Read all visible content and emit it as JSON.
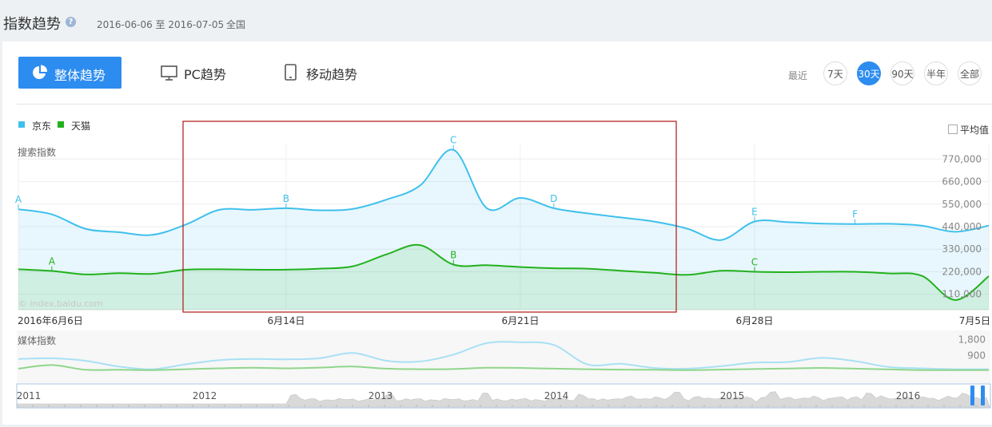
{
  "header": {
    "title": "指数趋势",
    "help_icon": "?",
    "date_range": "2016-06-06 至 2016-07-05",
    "region": "全国"
  },
  "tabs": [
    {
      "label": "整体趋势",
      "icon": "pie-chart-icon",
      "active": true
    },
    {
      "label": "PC趋势",
      "icon": "monitor-icon",
      "active": false
    },
    {
      "label": "移动趋势",
      "icon": "tablet-icon",
      "active": false
    }
  ],
  "range": {
    "label": "最近",
    "options": [
      "7天",
      "30天",
      "90天",
      "半年",
      "全部"
    ],
    "selected": "30天"
  },
  "avg_checkbox_label": "平均值",
  "colors": {
    "accent": "#2d8cf0",
    "jd": "#3fc0ec",
    "tmall": "#22b11d",
    "highlight_box": "#b01515"
  },
  "chart_data": [
    {
      "type": "area",
      "ylabel": "搜索指数",
      "watermark": "© index.baidu.com",
      "x_tick_labels": [
        "2016年6月6日",
        "6月14日",
        "6月21日",
        "6月28日",
        "7月5日"
      ],
      "y_tick_labels": [
        "110,000",
        "220,000",
        "330,000",
        "440,000",
        "550,000",
        "660,000",
        "770,000"
      ],
      "ylim": [
        35000,
        845000
      ],
      "legend": "top-left",
      "grid": true,
      "x": [
        "2016-06-06",
        "2016-06-07",
        "2016-06-08",
        "2016-06-09",
        "2016-06-10",
        "2016-06-11",
        "2016-06-12",
        "2016-06-13",
        "2016-06-14",
        "2016-06-15",
        "2016-06-16",
        "2016-06-17",
        "2016-06-18",
        "2016-06-19",
        "2016-06-20",
        "2016-06-21",
        "2016-06-22",
        "2016-06-23",
        "2016-06-24",
        "2016-06-25",
        "2016-06-26",
        "2016-06-27",
        "2016-06-28",
        "2016-06-29",
        "2016-06-30",
        "2016-07-01",
        "2016-07-02",
        "2016-07-03",
        "2016-07-04",
        "2016-07-05"
      ],
      "series": [
        {
          "name": "京东",
          "values": [
            525000,
            500000,
            430000,
            413000,
            400000,
            450000,
            522000,
            522000,
            530000,
            520000,
            527000,
            572000,
            640000,
            815000,
            530000,
            580000,
            530000,
            505000,
            485000,
            465000,
            430000,
            375000,
            465000,
            462000,
            455000,
            453000,
            454000,
            445000,
            415000,
            445000
          ]
        },
        {
          "name": "天猫",
          "values": [
            232000,
            224000,
            207000,
            213000,
            210000,
            230000,
            232000,
            230000,
            230000,
            235000,
            247000,
            305000,
            350000,
            255000,
            252000,
            243000,
            237000,
            235000,
            225000,
            215000,
            205000,
            225000,
            220000,
            218000,
            220000,
            220000,
            212000,
            200000,
            82000,
            198000
          ]
        }
      ],
      "annotations": [
        {
          "series": "京东",
          "x": "2016-06-06",
          "label": "A"
        },
        {
          "series": "京东",
          "x": "2016-06-14",
          "label": "B"
        },
        {
          "series": "京东",
          "x": "2016-06-19",
          "label": "C"
        },
        {
          "series": "京东",
          "x": "2016-06-22",
          "label": "D"
        },
        {
          "series": "京东",
          "x": "2016-06-28",
          "label": "E"
        },
        {
          "series": "京东",
          "x": "2016-07-01",
          "label": "F"
        },
        {
          "series": "天猫",
          "x": "2016-06-07",
          "label": "A"
        },
        {
          "series": "天猫",
          "x": "2016-06-19",
          "label": "B"
        },
        {
          "series": "天猫",
          "x": "2016-06-28",
          "label": "C"
        }
      ]
    },
    {
      "type": "line",
      "ylabel": "媒体指数",
      "y_tick_labels": [
        "900",
        "1,800"
      ],
      "ylim": [
        0,
        1950
      ],
      "x": [
        "2016-06-06",
        "2016-06-07",
        "2016-06-08",
        "2016-06-09",
        "2016-06-10",
        "2016-06-11",
        "2016-06-12",
        "2016-06-13",
        "2016-06-14",
        "2016-06-15",
        "2016-06-16",
        "2016-06-17",
        "2016-06-18",
        "2016-06-19",
        "2016-06-20",
        "2016-06-21",
        "2016-06-22",
        "2016-06-23",
        "2016-06-24",
        "2016-06-25",
        "2016-06-26",
        "2016-06-27",
        "2016-06-28",
        "2016-06-29",
        "2016-06-30",
        "2016-07-01",
        "2016-07-02",
        "2016-07-03",
        "2016-07-04",
        "2016-07-05"
      ],
      "series": [
        {
          "name": "京东",
          "values": [
            720,
            760,
            620,
            300,
            150,
            420,
            650,
            720,
            700,
            760,
            1050,
            620,
            580,
            960,
            1600,
            1650,
            1500,
            420,
            450,
            220,
            180,
            320,
            520,
            550,
            780,
            600,
            280,
            200,
            150,
            150
          ]
        },
        {
          "name": "天猫",
          "values": [
            180,
            380,
            120,
            120,
            100,
            150,
            200,
            230,
            200,
            240,
            300,
            180,
            150,
            160,
            230,
            220,
            180,
            150,
            130,
            120,
            100,
            130,
            160,
            190,
            220,
            180,
            140,
            100,
            100,
            100
          ]
        }
      ]
    },
    {
      "type": "area",
      "x_tick_labels": [
        "2011",
        "2012",
        "2013",
        "2014",
        "2015",
        "2016"
      ]
    }
  ]
}
